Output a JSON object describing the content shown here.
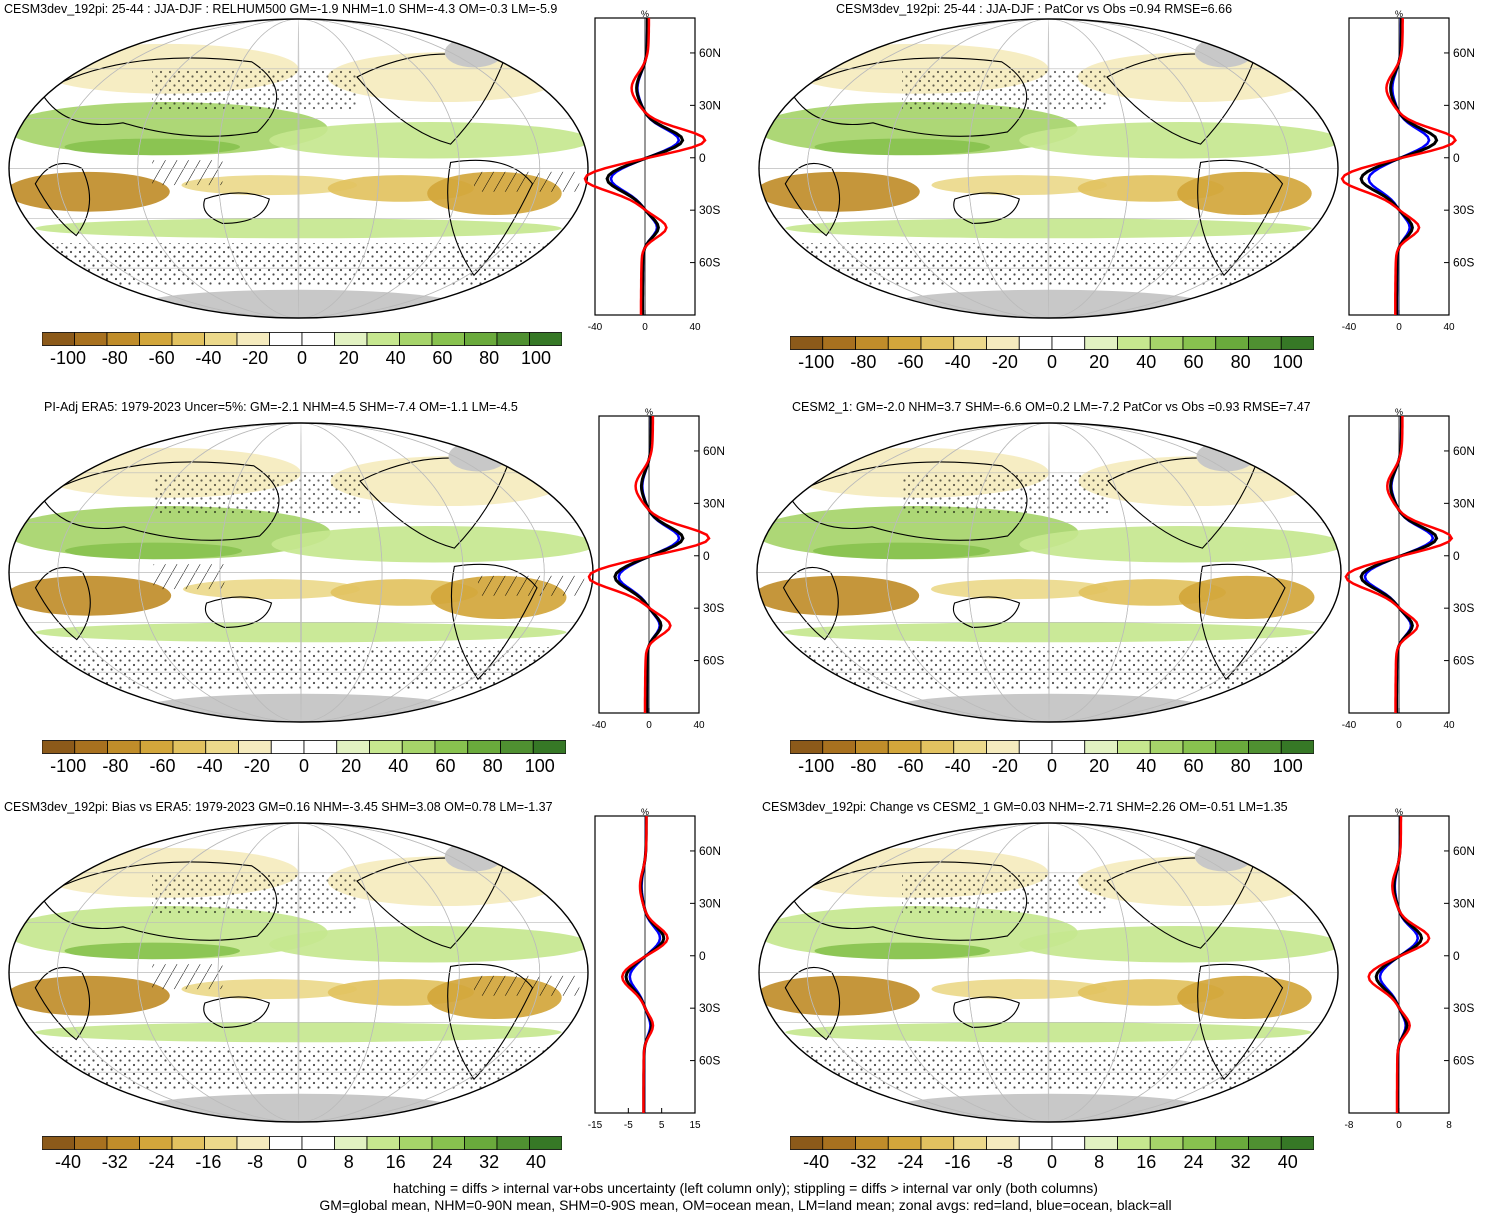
{
  "colors": {
    "brown": [
      "#8c5a1a",
      "#a8711f",
      "#c08d2a",
      "#d2a63b",
      "#e2c260",
      "#ecd98b",
      "#f5ebbe"
    ],
    "white": "#ffffff",
    "green": [
      "#e2f2c2",
      "#c6e78f",
      "#a6d46a",
      "#88c24f",
      "#6aaa3c",
      "#4f9031",
      "#367826"
    ],
    "land_missing": "#c8c8c8",
    "land_zonal": "#ff0000",
    "ocean_zonal": "#0000ff",
    "all_zonal": "#000000"
  },
  "panels": [
    {
      "id": "p1",
      "title": "CESM3dev_192pi: 25-44 : JJA-DJF : RELHUM500 GM=-1.9 NHM=1.0 SHM=-4.3 OM=-0.3 LM=-5.9",
      "hatching": true,
      "zonal": {
        "unit": "%",
        "xticks": [
          "-40",
          "0",
          "40"
        ],
        "xrange": [
          -40,
          40
        ],
        "lat_labels": [
          "60N",
          "30N",
          "0",
          "30S",
          "60S"
        ]
      },
      "colorbar": [
        "-100",
        "-80",
        "-60",
        "-40",
        "-20",
        "0",
        "20",
        "40",
        "60",
        "80",
        "100"
      ]
    },
    {
      "id": "p2",
      "title": "CESM3dev_192pi: 25-44 : JJA-DJF : PatCor vs Obs =0.94 RMSE=6.66",
      "hatching": false,
      "zonal": {
        "unit": "%",
        "xticks": [
          "-40",
          "0",
          "40"
        ],
        "xrange": [
          -40,
          40
        ],
        "lat_labels": [
          "60N",
          "30N",
          "0",
          "30S",
          "60S"
        ]
      },
      "colorbar": [
        "-100",
        "-80",
        "-60",
        "-40",
        "-20",
        "0",
        "20",
        "40",
        "60",
        "80",
        "100"
      ]
    },
    {
      "id": "p3",
      "title": "PI-Adj ERA5: 1979-2023 Uncer=5%: GM=-2.1 NHM=4.5 SHM=-7.4 OM=-1.1 LM=-4.5",
      "hatching": true,
      "zonal": {
        "unit": "%",
        "xticks": [
          "-40",
          "0",
          "40"
        ],
        "xrange": [
          -40,
          40
        ],
        "lat_labels": [
          "60N",
          "30N",
          "0",
          "30S",
          "60S"
        ]
      },
      "colorbar": [
        "-100",
        "-80",
        "-60",
        "-40",
        "-20",
        "0",
        "20",
        "40",
        "60",
        "80",
        "100"
      ]
    },
    {
      "id": "p4",
      "title": "CESM2_1: GM=-2.0 NHM=3.7 SHM=-6.6 OM=0.2 LM=-7.2 PatCor vs Obs =0.93 RMSE=7.47",
      "hatching": false,
      "zonal": {
        "unit": "%",
        "xticks": [
          "-40",
          "0",
          "40"
        ],
        "xrange": [
          -40,
          40
        ],
        "lat_labels": [
          "60N",
          "30N",
          "0",
          "30S",
          "60S"
        ]
      },
      "colorbar": [
        "-100",
        "-80",
        "-60",
        "-40",
        "-20",
        "0",
        "20",
        "40",
        "60",
        "80",
        "100"
      ]
    },
    {
      "id": "p5",
      "title": "CESM3dev_192pi: Bias vs ERA5: 1979-2023 GM=0.16 NHM=-3.45 SHM=3.08 OM=0.78 LM=-1.37",
      "hatching": true,
      "zonal": {
        "unit": "%",
        "xticks": [
          "-15",
          "-5",
          "5",
          "15"
        ],
        "xrange": [
          -15,
          15
        ],
        "lat_labels": [
          "60N",
          "30N",
          "0",
          "30S",
          "60S"
        ]
      },
      "colorbar": [
        "-40",
        "-32",
        "-24",
        "-16",
        "-8",
        "0",
        "8",
        "16",
        "24",
        "32",
        "40"
      ]
    },
    {
      "id": "p6",
      "title": "CESM3dev_192pi: Change vs CESM2_1 GM=0.03 NHM=-2.71 SHM=2.26 OM=-0.51 LM=1.35",
      "hatching": false,
      "zonal": {
        "unit": "%",
        "xticks": [
          "-8",
          "0",
          "8"
        ],
        "xrange": [
          -8,
          8
        ],
        "lat_labels": [
          "60N",
          "30N",
          "0",
          "30S",
          "60S"
        ]
      },
      "colorbar": [
        "-40",
        "-32",
        "-24",
        "-16",
        "-8",
        "0",
        "8",
        "16",
        "24",
        "32",
        "40"
      ]
    }
  ],
  "footer": {
    "line1": "hatching = diffs > internal var+obs uncertainty (left column only); stippling = diffs > internal var only (both columns)",
    "line2": "GM=global mean, NHM=0-90N mean, SHM=0-90S mean, OM=ocean mean, LM=land mean; zonal avgs: red=land, blue=ocean, black=all"
  }
}
